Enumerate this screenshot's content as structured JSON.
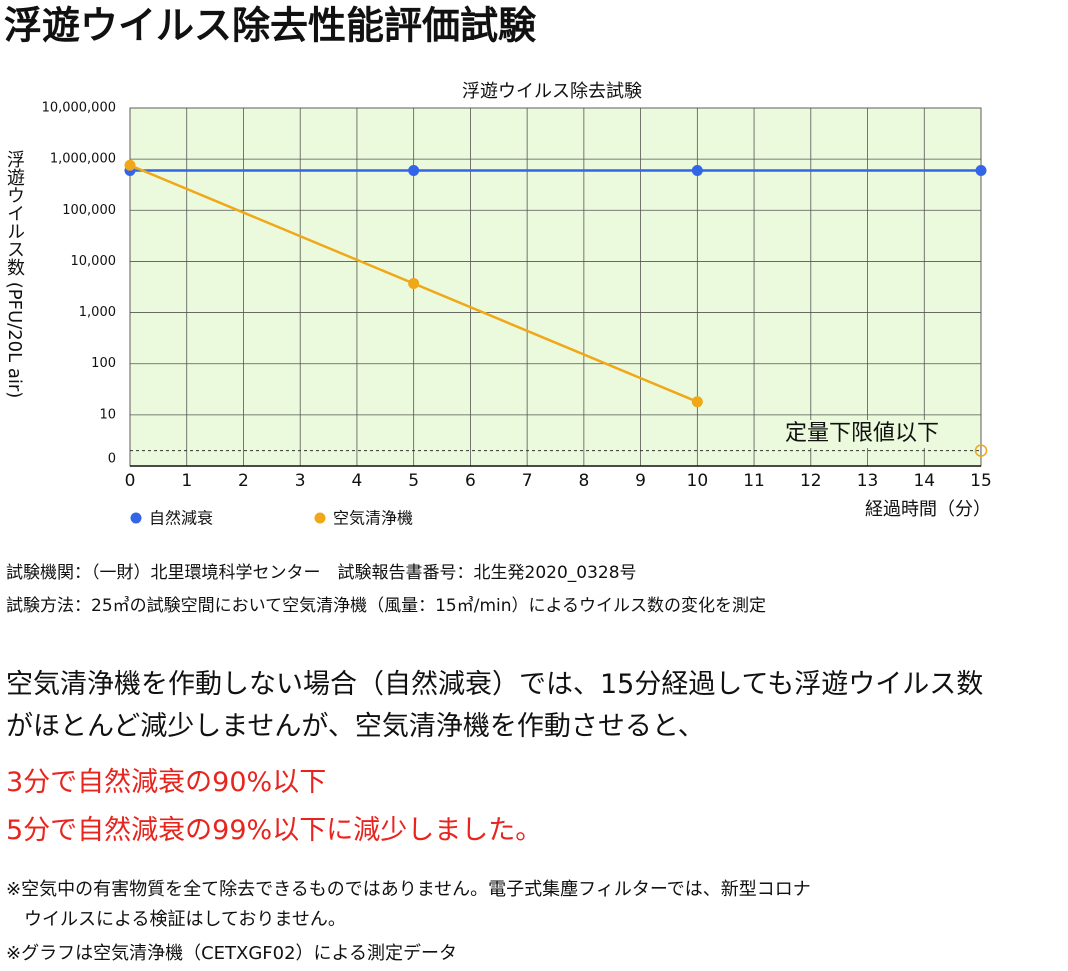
{
  "header": {
    "title": "浮遊ウイルス除去性能評価試験"
  },
  "chart_data": {
    "type": "line",
    "title": "浮遊ウイルス除去試験",
    "xlabel": "経過時間（分）",
    "ylabel": "浮遊ウイルス数 (PFU/20L air)",
    "x": [
      0,
      5,
      10,
      15
    ],
    "series": [
      {
        "name": "自然減衰",
        "color": "#3366e6",
        "values": [
          600000,
          600000,
          600000,
          600000
        ]
      },
      {
        "name": "空気清浄機",
        "color": "#f0a818",
        "values": [
          760000,
          3700,
          18,
          null
        ]
      }
    ],
    "xlim": [
      0,
      15
    ],
    "xticks": [
      0,
      1,
      2,
      3,
      4,
      5,
      6,
      7,
      8,
      9,
      10,
      11,
      12,
      13,
      14,
      15
    ],
    "ylim": [
      1,
      10000000
    ],
    "log_y": true,
    "yticks": [
      10,
      100,
      {
        "value": 1000,
        "label": "1,000"
      },
      {
        "value": 10000,
        "label": "10,000"
      },
      {
        "value": 100000,
        "label": "100,000"
      },
      {
        "value": 1000000,
        "label": "1,000,000"
      },
      {
        "value": 10000000,
        "label": "10,000,000"
      }
    ],
    "y_bottom_label": "0",
    "limit": {
      "label": "定量下限値以下",
      "value": 2,
      "x": 15,
      "color": "#f0a818"
    },
    "grid": true,
    "background": "#ebfadc",
    "legend": "bottom"
  },
  "source": {
    "lab": "試験機関：（一財）北里環境科学センター　試験報告書番号：北生発2020_0328号",
    "method": "試験方法：25㎥の試験空間において空気清浄機（風量：15㎥/min）によるウイルス数の変化を測定"
  },
  "body": [
    "空気清浄機を作動しない場合（自然減衰）では、15分経過しても浮遊ウイルス数",
    "がほとんど減少しませんが、空気清浄機を作動させると、"
  ],
  "highlight": [
    "3分で自然減衰の90%以下",
    "5分で自然減衰の99%以下に減少しました。"
  ],
  "notes": [
    "※空気中の有害物質を全て除去できるものではありません。電子式集塵フィルターでは、新型コロナ",
    "　ウイルスによる検証はしておりません。",
    "※グラフは空気清浄機（CETXGF02）による測定データ"
  ]
}
